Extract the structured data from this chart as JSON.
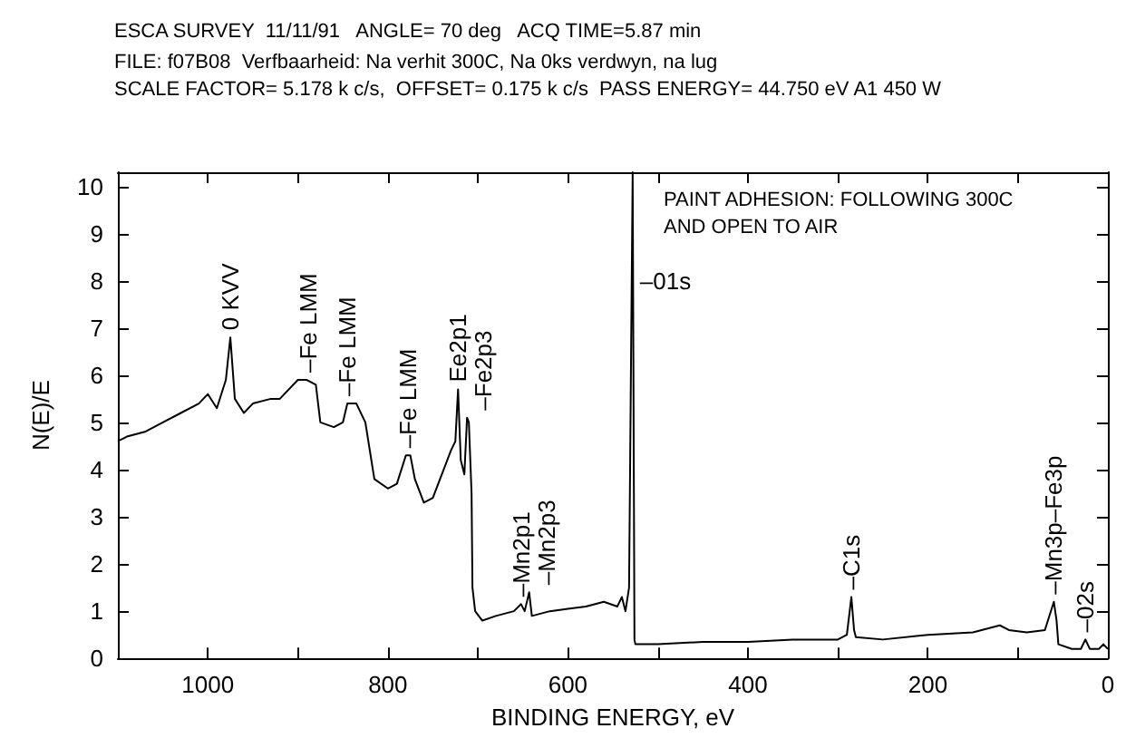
{
  "chart_data": {
    "type": "line",
    "title": "ESCA SURVEY  11/11/91   ANGLE= 70 deg   ACQ TIME=5.87 min",
    "subtitle": "FILE: f07B08  Verfbaarheid: Na verhit 300C, Na 0ks verdwyn, na lug\nSCALE FACTOR= 5.178 k c/s,  OFFSET= 0.175 k c/s  PASS ENERGY= 44.750 eV A1 450 W",
    "xlabel": "BINDING ENERGY, eV",
    "ylabel": "N(E)/E",
    "x": [
      1100,
      1090,
      1070,
      1050,
      1030,
      1010,
      1000,
      990,
      980,
      975,
      970,
      960,
      950,
      930,
      920,
      900,
      890,
      880,
      875,
      860,
      850,
      845,
      835,
      825,
      815,
      800,
      790,
      780,
      775,
      770,
      760,
      750,
      740,
      730,
      725,
      722,
      719,
      715,
      712,
      710,
      707,
      706,
      703,
      695,
      680,
      660,
      652,
      648,
      643,
      640,
      620,
      600,
      580,
      560,
      545,
      540,
      536,
      532,
      528,
      526,
      525,
      500,
      450,
      400,
      350,
      300,
      290,
      285,
      282,
      280,
      250,
      200,
      150,
      120,
      110,
      90,
      70,
      60,
      57,
      55,
      40,
      30,
      25,
      20,
      10,
      5,
      0
    ],
    "series": [
      {
        "color": "#000000",
        "values": [
          4.6,
          4.7,
          4.8,
          5.0,
          5.2,
          5.4,
          5.6,
          5.3,
          5.9,
          6.8,
          5.5,
          5.2,
          5.4,
          5.5,
          5.5,
          5.9,
          5.9,
          5.8,
          5.0,
          4.9,
          5.0,
          5.4,
          5.4,
          5.0,
          3.8,
          3.6,
          3.7,
          4.3,
          4.3,
          3.8,
          3.3,
          3.4,
          3.9,
          4.4,
          4.6,
          5.7,
          4.2,
          3.9,
          5.1,
          5.0,
          3.5,
          1.5,
          1.0,
          0.8,
          0.9,
          1.0,
          1.15,
          1.0,
          1.4,
          0.9,
          1.0,
          1.05,
          1.1,
          1.2,
          1.1,
          1.3,
          1.0,
          1.5,
          10.3,
          0.4,
          0.3,
          0.3,
          0.35,
          0.35,
          0.4,
          0.4,
          0.5,
          1.3,
          0.6,
          0.45,
          0.4,
          0.5,
          0.55,
          0.7,
          0.6,
          0.55,
          0.6,
          1.2,
          0.8,
          0.3,
          0.2,
          0.2,
          0.4,
          0.2,
          0.2,
          0.3,
          0.2
        ]
      }
    ],
    "xlim": [
      1100,
      0
    ],
    "xticks": [
      1000,
      {
        "value": 900,
        "label": null
      },
      800,
      {
        "value": 700,
        "label": null
      },
      600,
      {
        "value": 500,
        "label": null
      },
      400,
      {
        "value": 300,
        "label": null
      },
      200,
      {
        "value": 100,
        "label": null
      },
      0
    ],
    "ylim": [
      0,
      10.3
    ],
    "yticks": [
      0,
      1,
      2,
      3,
      4,
      5,
      6,
      7,
      8,
      9,
      10
    ],
    "grid": false,
    "marker": "none",
    "line_style": "solid",
    "annotations": [
      {
        "text": "0 KVV",
        "x": 975,
        "y": 6.8
      },
      {
        "text": "–Fe LMM",
        "x": 888,
        "y": 5.9
      },
      {
        "text": "–Fe LMM",
        "x": 845,
        "y": 5.4
      },
      {
        "text": "–Fe LMM",
        "x": 778,
        "y": 4.3
      },
      {
        "text": "Ee2p1",
        "x": 722,
        "y": 5.7
      },
      {
        "text": "–Fe2p3",
        "x": 710,
        "y": 5.1
      },
      {
        "text": "–Mn2p1",
        "x": 652,
        "y": 1.15
      },
      {
        "text": "–Mn2p3",
        "x": 643,
        "y": 1.4
      },
      {
        "text": "–01s",
        "x": 528,
        "y": 8
      },
      {
        "text": "–C1s",
        "x": 285,
        "y": 1.3
      },
      {
        "text": "–Mn3p–Fe3p",
        "x": 60,
        "y": 1.2
      },
      {
        "text": "–02s",
        "x": 25,
        "y": 0.4
      },
      "PAINT ADHESION: FOLLOWING 300C\nAND OPEN TO AIR"
    ]
  }
}
